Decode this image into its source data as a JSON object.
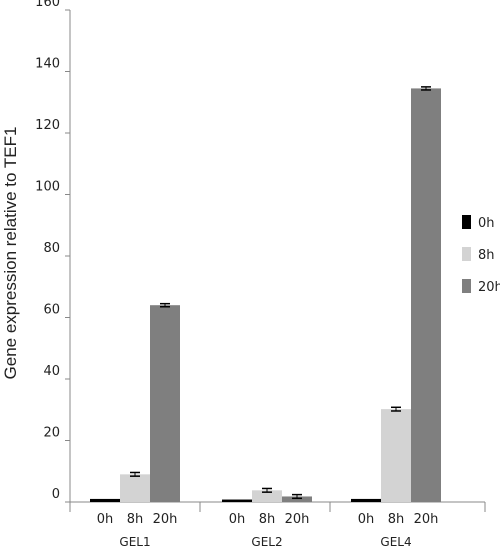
{
  "chart_data": {
    "type": "bar",
    "ylabel": "Gene expression relative to TEF1",
    "ylim": [
      0,
      160
    ],
    "yticks": [
      0,
      20,
      40,
      60,
      80,
      100,
      120,
      140,
      160
    ],
    "groups": [
      "GEL1",
      "GEL2",
      "GEL4"
    ],
    "series": [
      {
        "name": "0h",
        "color": "#000000",
        "values": [
          1,
          0.8,
          1
        ],
        "errors": [
          0,
          0,
          0
        ]
      },
      {
        "name": "8h",
        "color": "#d3d3d3",
        "values": [
          9,
          3.8,
          30.2
        ],
        "errors": [
          0.6,
          0.6,
          0.6
        ]
      },
      {
        "name": "20h",
        "color": "#7f7f7f",
        "values": [
          64,
          1.8,
          134.5
        ],
        "errors": [
          0.5,
          0.6,
          0.5
        ]
      }
    ],
    "legend_position": "right",
    "grid": false
  }
}
